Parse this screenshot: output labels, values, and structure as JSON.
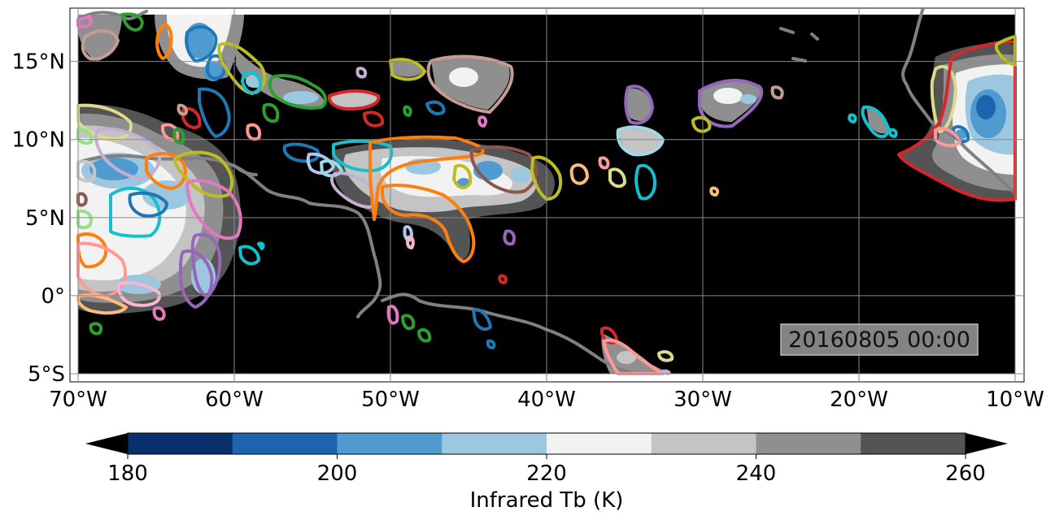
{
  "map": {
    "lon_range": [
      -70,
      -10
    ],
    "lat_range": [
      -5.5,
      18.5
    ],
    "lon_ticks": [
      {
        "value": -70,
        "label": "70°W"
      },
      {
        "value": -60,
        "label": "60°W"
      },
      {
        "value": -50,
        "label": "50°W"
      },
      {
        "value": -40,
        "label": "40°W"
      },
      {
        "value": -30,
        "label": "30°W"
      },
      {
        "value": -20,
        "label": "20°W"
      },
      {
        "value": -10,
        "label": "10°W"
      }
    ],
    "lat_ticks": [
      {
        "value": 15,
        "label": "15°N"
      },
      {
        "value": 10,
        "label": "10°N"
      },
      {
        "value": 5,
        "label": "5°N"
      },
      {
        "value": 0,
        "label": "0°"
      },
      {
        "value": -5,
        "label": "5°S"
      }
    ],
    "timestamp": "20160805 00:00",
    "background_color": "#000000",
    "coastline_color": "#808080",
    "gridlines": true
  },
  "colorbar": {
    "label": "Infrared Tb (K)",
    "range": [
      180,
      260
    ],
    "step": 10,
    "ticks": [
      "180",
      "200",
      "220",
      "240",
      "260"
    ],
    "extend": "both",
    "colors": [
      "#08306b",
      "#1c65ae",
      "#4f9bcf",
      "#9dc7de",
      "#f2f2f2",
      "#c4c4c4",
      "#8f8f8f",
      "#545454"
    ],
    "under_color": "#000000",
    "over_color": "#000000"
  }
}
